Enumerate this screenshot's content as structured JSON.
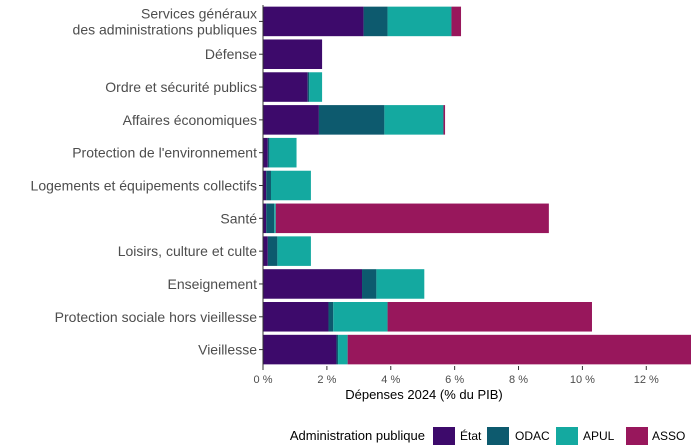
{
  "chart_data": {
    "type": "bar",
    "orientation": "horizontal",
    "stacked": true,
    "title": "",
    "xlabel": "Dépenses 2024 (% du PIB)",
    "ylabel": "",
    "xlim": [
      0,
      13.4
    ],
    "x_ticks": [
      "0 %",
      "2 %",
      "4 %",
      "6 %",
      "8 %",
      "10 %",
      "12 %"
    ],
    "x_tick_values": [
      0,
      2,
      4,
      6,
      8,
      10,
      12
    ],
    "grid": false,
    "legend_position": "bottom",
    "legend_title": "Administration publique",
    "categories": [
      [
        "Services généraux",
        "des administrations publiques"
      ],
      [
        "Défense"
      ],
      [
        "Ordre et sécurité publics"
      ],
      [
        "Affaires économiques"
      ],
      [
        "Protection de l'environnement"
      ],
      [
        "Logements et équipements collectifs"
      ],
      [
        "Santé"
      ],
      [
        "Loisirs, culture et culte"
      ],
      [
        "Enseignement"
      ],
      [
        "Protection sociale hors vieillesse"
      ],
      [
        "Vieillesse"
      ]
    ],
    "series": [
      {
        "name": "État",
        "color": "#3d0a6b",
        "values": [
          3.15,
          1.85,
          1.4,
          1.75,
          0.15,
          0.1,
          0.1,
          0.15,
          3.1,
          2.05,
          2.3
        ]
      },
      {
        "name": "ODAC",
        "color": "#0d5a6e",
        "values": [
          0.75,
          0.0,
          0.05,
          2.05,
          0.05,
          0.15,
          0.25,
          0.3,
          0.45,
          0.15,
          0.05
        ]
      },
      {
        "name": "APUL",
        "color": "#14a9a0",
        "values": [
          2.0,
          0.0,
          0.4,
          1.85,
          0.85,
          1.25,
          0.05,
          1.05,
          1.5,
          1.7,
          0.3
        ]
      },
      {
        "name": "ASSO",
        "color": "#98175c",
        "values": [
          0.3,
          0.0,
          0.0,
          0.05,
          0.0,
          0.0,
          8.55,
          0.0,
          0.0,
          6.4,
          10.75
        ]
      }
    ]
  }
}
